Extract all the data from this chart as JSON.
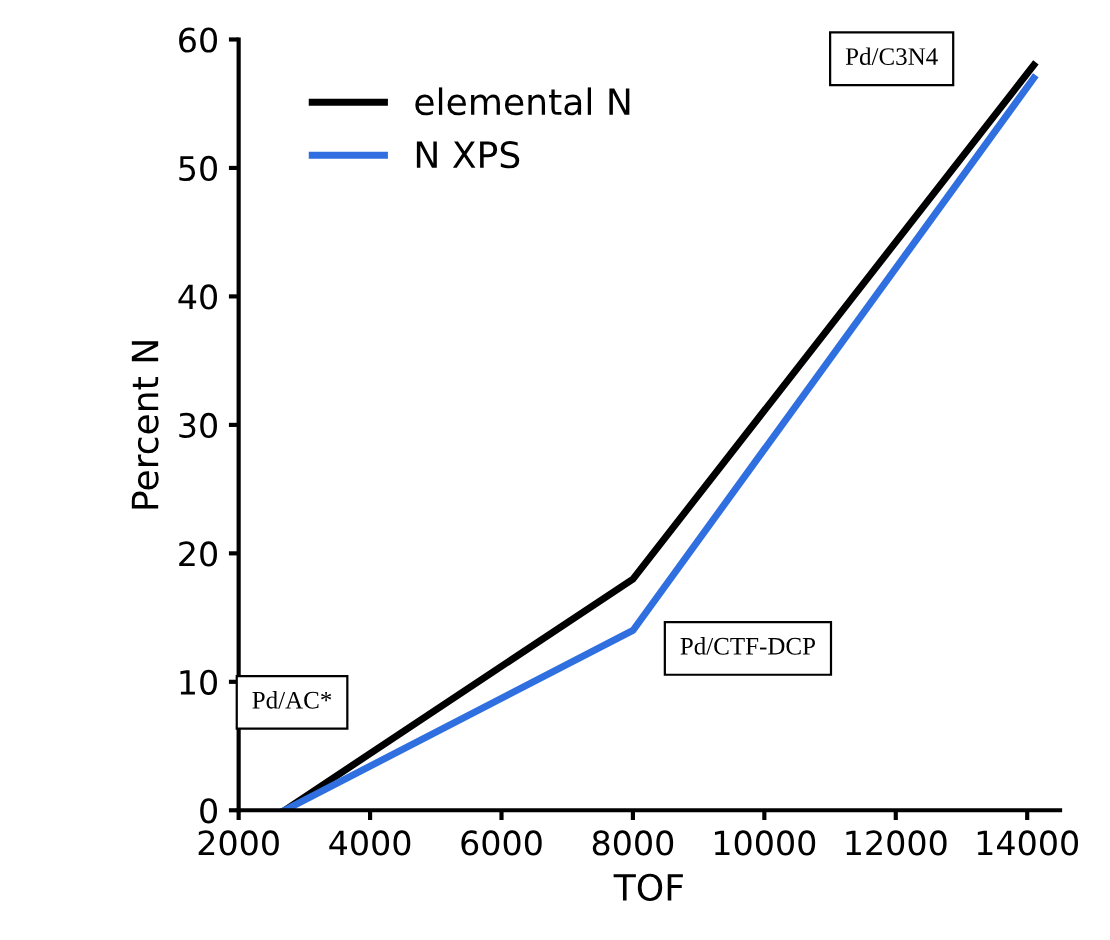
{
  "chart_data": {
    "type": "line",
    "xlabel": "TOF",
    "ylabel": "Percent N",
    "series": [
      {
        "name": "elemental N",
        "color": "#000000",
        "x": [
          2700,
          8000,
          14100
        ],
        "values": [
          0,
          18,
          58
        ]
      },
      {
        "name": "N XPS",
        "color": "#2f6fe0",
        "x": [
          2700,
          8000,
          14100
        ],
        "values": [
          0,
          14,
          57
        ]
      }
    ],
    "xlim": [
      2000,
      14500
    ],
    "ylim": [
      0,
      60
    ],
    "xticks": [
      2000,
      4000,
      6000,
      8000,
      10000,
      12000,
      14000
    ],
    "yticks": [
      0,
      10,
      20,
      30,
      40,
      50,
      60
    ],
    "annotations": [
      "Pd/AC*",
      "Pd/CTF-DCP",
      "Pd/C3N4"
    ],
    "legend": "top left",
    "grid": false,
    "marker": "none",
    "line_style": "solid"
  }
}
